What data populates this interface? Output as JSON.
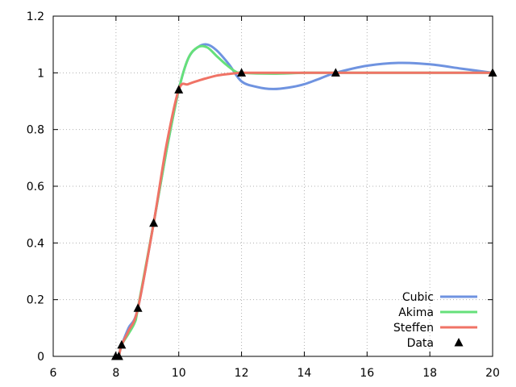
{
  "chart_data": {
    "type": "line",
    "title": "",
    "xlabel": "",
    "ylabel": "",
    "xlim": [
      6,
      20
    ],
    "ylim": [
      0,
      1.2
    ],
    "xticks": [
      6,
      8,
      10,
      12,
      14,
      16,
      18,
      20
    ],
    "xtick_labels": [
      "6",
      "8",
      "10",
      "12",
      "14",
      "16",
      "18",
      "20"
    ],
    "yticks": [
      0,
      0.2,
      0.4,
      0.6,
      0.8,
      1.0,
      1.2
    ],
    "ytick_labels": [
      "0",
      "0.2",
      "0.4",
      "0.6",
      "0.8",
      "1",
      "1.2"
    ],
    "grid": true,
    "legend_position": "bottom-right",
    "points": {
      "name": "Data",
      "color": "#000000",
      "marker": "triangle",
      "x": [
        7.99,
        8.09,
        8.18,
        8.7,
        9.2,
        10.0,
        12.0,
        15.0,
        20.0
      ],
      "y": [
        0.0,
        0.0,
        0.04,
        0.17,
        0.47,
        0.94,
        1.0,
        1.0,
        1.0
      ]
    },
    "series": [
      {
        "name": "Cubic",
        "color": "#6f93e0",
        "x": [
          8.09,
          8.18,
          8.4,
          8.7,
          9.2,
          9.6,
          10.0,
          10.3,
          10.6,
          10.9,
          11.2,
          11.6,
          12.0,
          12.5,
          13.0,
          13.5,
          14.0,
          14.5,
          15.0,
          16.0,
          17.0,
          18.0,
          19.0,
          20.0
        ],
        "y": [
          0.0,
          0.04,
          0.1,
          0.17,
          0.47,
          0.72,
          0.94,
          1.05,
          1.09,
          1.1,
          1.08,
          1.03,
          0.97,
          0.95,
          0.943,
          0.948,
          0.96,
          0.98,
          1.0,
          1.025,
          1.035,
          1.03,
          1.015,
          1.0
        ]
      },
      {
        "name": "Akima",
        "color": "#66e07a",
        "x": [
          8.09,
          8.18,
          8.4,
          8.6,
          8.7,
          9.2,
          9.6,
          10.0,
          10.3,
          10.6,
          10.9,
          11.2,
          11.5,
          11.8,
          12.0,
          13.0,
          14.0,
          15.0,
          20.0
        ],
        "y": [
          0.0,
          0.04,
          0.08,
          0.12,
          0.17,
          0.47,
          0.72,
          0.94,
          1.05,
          1.09,
          1.09,
          1.06,
          1.03,
          1.005,
          1.0,
          0.997,
          1.0,
          1.0,
          1.0
        ]
      },
      {
        "name": "Steffen",
        "color": "#f07366",
        "x": [
          8.09,
          8.18,
          8.4,
          8.7,
          9.2,
          9.6,
          10.0,
          10.3,
          10.7,
          11.2,
          11.6,
          12.0,
          13.0,
          14.0,
          15.0,
          20.0
        ],
        "y": [
          0.0,
          0.04,
          0.09,
          0.17,
          0.47,
          0.74,
          0.94,
          0.96,
          0.975,
          0.99,
          0.996,
          1.0,
          1.0,
          1.0,
          1.0,
          1.0
        ]
      }
    ]
  }
}
